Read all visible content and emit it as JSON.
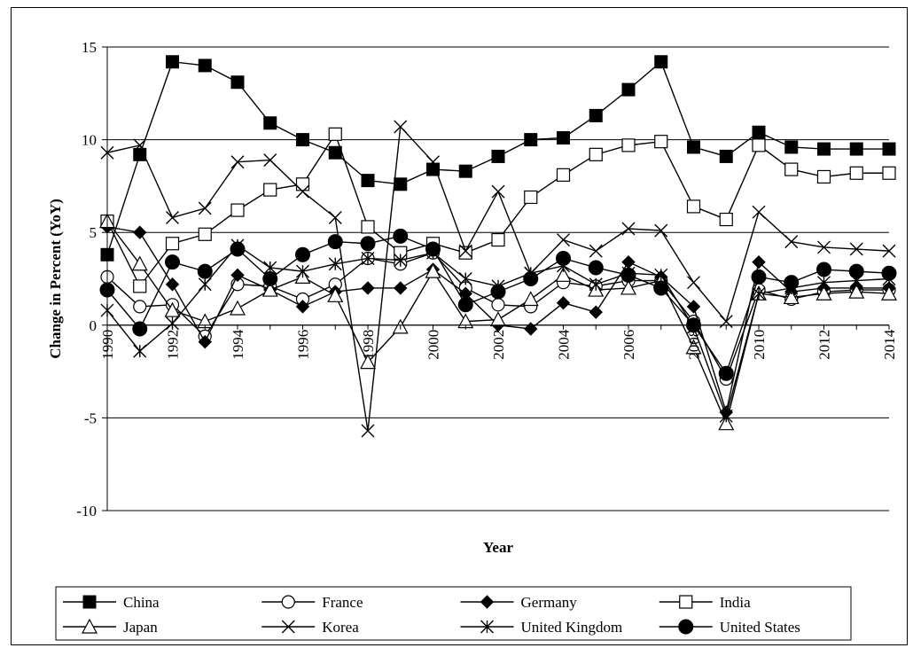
{
  "chart_data": {
    "type": "line",
    "title": "",
    "xlabel": "Year",
    "ylabel": "Change in Percent (YoY)",
    "ylim": [
      -10,
      15
    ],
    "yticks": [
      -10,
      -5,
      0,
      5,
      10,
      15
    ],
    "xtick_labels": [
      "1990",
      "1992",
      "1994",
      "1996",
      "1998",
      "2000",
      "2002",
      "2004",
      "2006",
      "2008",
      "2010",
      "2012",
      "2014"
    ],
    "x": [
      1990,
      1991,
      1992,
      1993,
      1994,
      1995,
      1996,
      1997,
      1998,
      1999,
      2000,
      2001,
      2002,
      2003,
      2004,
      2005,
      2006,
      2007,
      2008,
      2009,
      2010,
      2011,
      2012,
      2013,
      2014
    ],
    "grid": "horizontal",
    "legend_position": "bottom",
    "series": [
      {
        "name": "China",
        "marker": "square-filled",
        "values": [
          3.8,
          9.2,
          14.2,
          14.0,
          13.1,
          10.9,
          10.0,
          9.3,
          7.8,
          7.6,
          8.4,
          8.3,
          9.1,
          10.0,
          10.1,
          11.3,
          12.7,
          14.2,
          9.6,
          9.1,
          10.4,
          9.6,
          9.5,
          9.5,
          9.5
        ]
      },
      {
        "name": "France",
        "marker": "circle-open",
        "values": [
          2.6,
          1.0,
          1.1,
          -0.6,
          2.2,
          2.1,
          1.4,
          2.2,
          3.6,
          3.3,
          3.9,
          2.0,
          1.1,
          1.0,
          2.3,
          2.1,
          2.4,
          2.4,
          0.2,
          -2.9,
          1.9,
          1.4,
          1.8,
          1.9,
          1.9
        ]
      },
      {
        "name": "Germany",
        "marker": "diamond-filled",
        "values": [
          5.3,
          5.0,
          2.2,
          -0.9,
          2.7,
          1.9,
          1.0,
          1.8,
          2.0,
          2.0,
          3.0,
          1.7,
          0.0,
          -0.2,
          1.2,
          0.7,
          3.4,
          2.6,
          1.0,
          -4.7,
          3.4,
          1.8,
          2.0,
          2.0,
          2.0
        ]
      },
      {
        "name": "India",
        "marker": "square-open",
        "values": [
          5.6,
          2.1,
          4.4,
          4.9,
          6.2,
          7.3,
          7.6,
          10.3,
          5.3,
          3.9,
          4.4,
          3.9,
          4.6,
          6.9,
          8.1,
          9.2,
          9.7,
          9.9,
          6.4,
          5.7,
          9.7,
          8.4,
          8.0,
          8.2,
          8.2
        ]
      },
      {
        "name": "Japan",
        "marker": "triangle-open",
        "values": [
          5.6,
          3.3,
          0.8,
          0.2,
          0.9,
          1.9,
          2.6,
          1.6,
          -2.0,
          -0.1,
          2.9,
          0.2,
          0.3,
          1.4,
          2.7,
          1.9,
          2.0,
          2.4,
          -1.2,
          -5.3,
          1.7,
          1.5,
          1.7,
          1.8,
          1.7
        ]
      },
      {
        "name": "Korea",
        "marker": "x",
        "values": [
          9.3,
          9.7,
          5.8,
          6.3,
          8.8,
          8.9,
          7.2,
          5.8,
          -5.7,
          10.7,
          8.8,
          4.0,
          7.2,
          2.8,
          4.6,
          4.0,
          5.2,
          5.1,
          2.3,
          0.2,
          6.1,
          4.5,
          4.2,
          4.1,
          4.0
        ]
      },
      {
        "name": "United Kingdom",
        "marker": "asterisk",
        "values": [
          0.8,
          -1.4,
          0.1,
          2.2,
          4.3,
          3.1,
          2.9,
          3.3,
          3.6,
          3.5,
          3.9,
          2.5,
          2.1,
          2.8,
          3.2,
          2.2,
          2.8,
          2.7,
          -0.1,
          -4.9,
          1.7,
          2.0,
          2.3,
          2.4,
          2.5
        ]
      },
      {
        "name": "United States",
        "marker": "circle-filled",
        "values": [
          1.9,
          -0.2,
          3.4,
          2.9,
          4.1,
          2.5,
          3.8,
          4.5,
          4.4,
          4.8,
          4.1,
          1.1,
          1.8,
          2.5,
          3.6,
          3.1,
          2.7,
          2.0,
          0.0,
          -2.6,
          2.6,
          2.3,
          3.0,
          2.9,
          2.8
        ]
      }
    ]
  }
}
